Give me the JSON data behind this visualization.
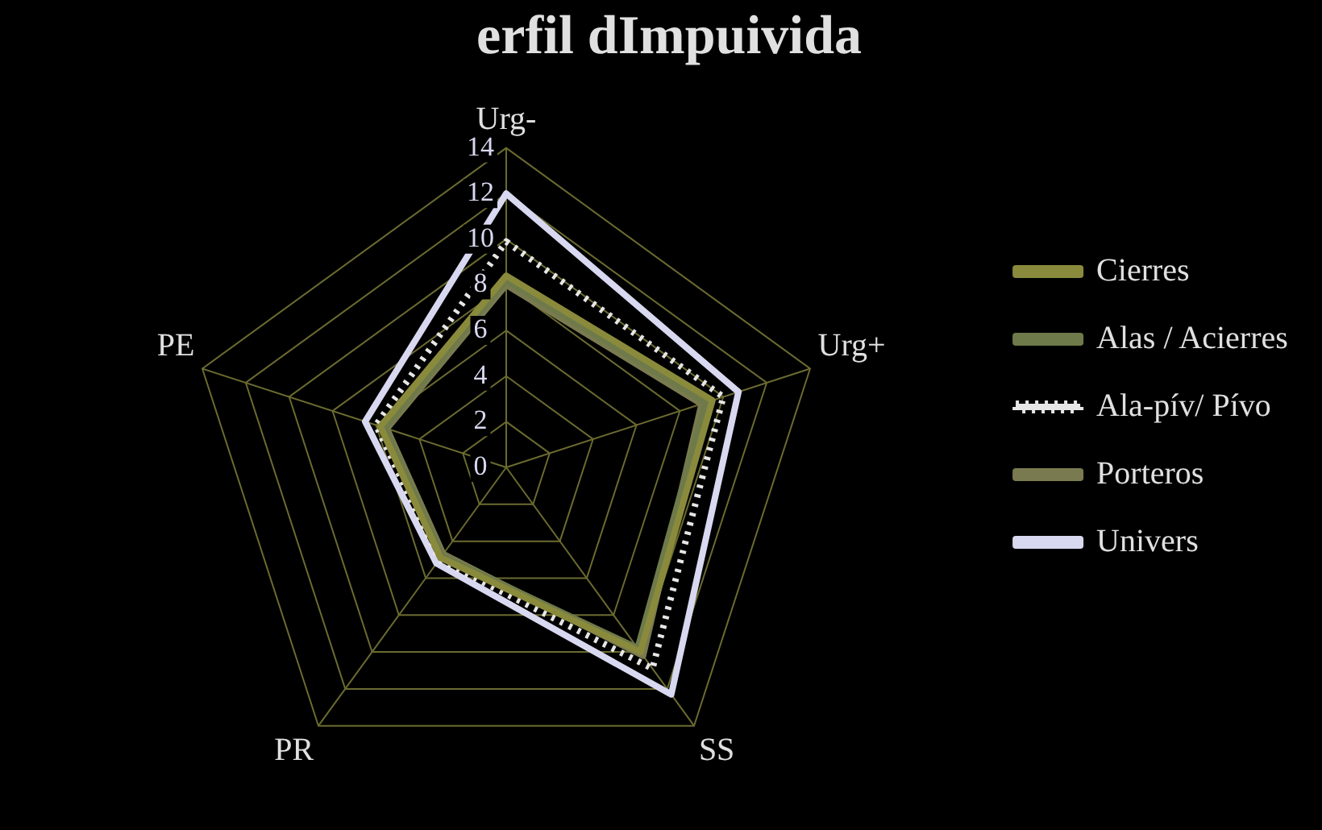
{
  "chart_data": {
    "type": "radar",
    "title": "erfil dImpuivida",
    "categories": [
      "Urg-",
      "Urg+",
      "SS",
      "PR",
      "PE"
    ],
    "ylim": [
      0,
      14
    ],
    "yticks": [
      0,
      2,
      4,
      6,
      8,
      10,
      12,
      14
    ],
    "grid": true,
    "legend": "right",
    "series": [
      {
        "name": "Cierres",
        "color": "#8a8a3c",
        "values": [
          8.4,
          9.5,
          10.0,
          4.9,
          5.8
        ]
      },
      {
        "name": "Alas / Acierres",
        "color": "#6e7a4a",
        "values": [
          8.2,
          9.2,
          9.8,
          4.8,
          5.6
        ]
      },
      {
        "name": "Ala-pív/ Pívo",
        "color": "#e6e6e6",
        "line_style": "dotted",
        "values": [
          9.9,
          10.0,
          10.9,
          5.0,
          6.0
        ]
      },
      {
        "name": "Porteros",
        "color": "#7a7a50",
        "values": [
          8.0,
          9.0,
          10.2,
          4.7,
          5.5
        ]
      },
      {
        "name": "Univers",
        "color": "#d8d8f0",
        "values": [
          12.0,
          10.7,
          12.3,
          5.2,
          6.5
        ]
      }
    ]
  }
}
